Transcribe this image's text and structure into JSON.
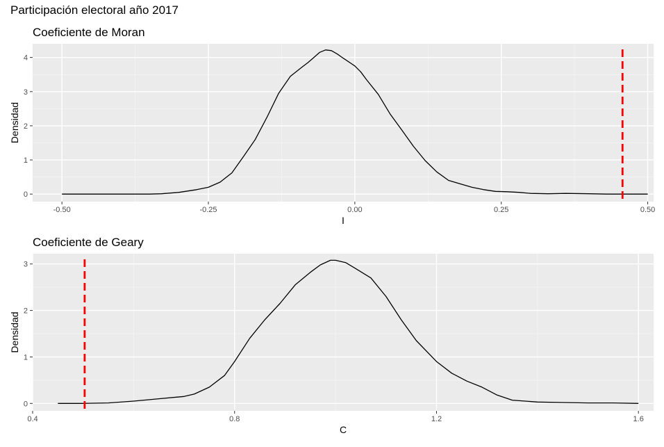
{
  "title": "Participación electoral año 2017",
  "colors": {
    "panel_background": "#ebebeb",
    "grid_major": "#ffffff",
    "grid_minor": "#f5f5f5",
    "density_line": "#000000",
    "observed_line": "#ff0000"
  },
  "chart_data": [
    {
      "type": "line",
      "title": "Coeficiente de Moran",
      "xlabel": "I",
      "ylabel": "Densidad",
      "xlim": [
        -0.55,
        0.51
      ],
      "ylim": [
        -0.22,
        4.4
      ],
      "xticks": [
        -0.5,
        -0.25,
        0.0,
        0.25,
        0.5
      ],
      "xtick_labels": [
        "-0.50",
        "-0.25",
        "0.00",
        "0.25",
        "0.50"
      ],
      "yticks": [
        0,
        1,
        2,
        3,
        4
      ],
      "ytick_labels": [
        "0",
        "1",
        "2",
        "3",
        "4"
      ],
      "grid": true,
      "series": [
        {
          "x": [
            -0.5,
            -0.45,
            -0.4,
            -0.35,
            -0.33,
            -0.3,
            -0.27,
            -0.25,
            -0.23,
            -0.21,
            -0.19,
            -0.17,
            -0.15,
            -0.13,
            -0.11,
            -0.09,
            -0.08,
            -0.07,
            -0.06,
            -0.05,
            -0.04,
            -0.03,
            -0.02,
            0.0,
            0.01,
            0.02,
            0.04,
            0.06,
            0.08,
            0.1,
            0.12,
            0.14,
            0.16,
            0.18,
            0.2,
            0.22,
            0.24,
            0.26,
            0.28,
            0.3,
            0.33,
            0.36,
            0.4,
            0.43,
            0.46,
            0.5
          ],
          "y": [
            0.0,
            0.0,
            0.0,
            0.0,
            0.01,
            0.05,
            0.13,
            0.2,
            0.35,
            0.62,
            1.1,
            1.6,
            2.25,
            2.95,
            3.45,
            3.72,
            3.85,
            4.0,
            4.15,
            4.22,
            4.2,
            4.1,
            3.98,
            3.75,
            3.58,
            3.35,
            2.92,
            2.35,
            1.88,
            1.4,
            0.98,
            0.65,
            0.4,
            0.3,
            0.2,
            0.13,
            0.08,
            0.07,
            0.05,
            0.02,
            0.01,
            0.02,
            0.01,
            0.0,
            0.0,
            0.0
          ]
        }
      ],
      "observed": 0.457
    },
    {
      "type": "line",
      "title": "Coeficiente de Geary",
      "xlabel": "C",
      "ylabel": "Densidad",
      "xlim": [
        0.4,
        1.63
      ],
      "ylim": [
        -0.16,
        3.22
      ],
      "xticks": [
        0.4,
        0.8,
        1.2,
        1.6
      ],
      "xtick_labels": [
        "0.4",
        "0.8",
        "1.2",
        "1.6"
      ],
      "yticks": [
        0,
        1,
        2,
        3
      ],
      "ytick_labels": [
        "0",
        "1",
        "2",
        "3"
      ],
      "grid": true,
      "series": [
        {
          "x": [
            0.45,
            0.5,
            0.55,
            0.6,
            0.65,
            0.7,
            0.72,
            0.75,
            0.78,
            0.8,
            0.83,
            0.86,
            0.89,
            0.92,
            0.95,
            0.97,
            0.99,
            1.0,
            1.02,
            1.04,
            1.07,
            1.1,
            1.13,
            1.16,
            1.2,
            1.23,
            1.26,
            1.29,
            1.32,
            1.35,
            1.4,
            1.45,
            1.5,
            1.55,
            1.6
          ],
          "y": [
            0.0,
            0.0,
            0.01,
            0.05,
            0.1,
            0.15,
            0.2,
            0.35,
            0.6,
            0.9,
            1.4,
            1.8,
            2.15,
            2.55,
            2.82,
            2.98,
            3.08,
            3.08,
            3.03,
            2.9,
            2.7,
            2.3,
            1.8,
            1.35,
            0.9,
            0.65,
            0.48,
            0.35,
            0.18,
            0.07,
            0.03,
            0.02,
            0.01,
            0.01,
            0.0
          ]
        }
      ],
      "observed": 0.503
    }
  ]
}
